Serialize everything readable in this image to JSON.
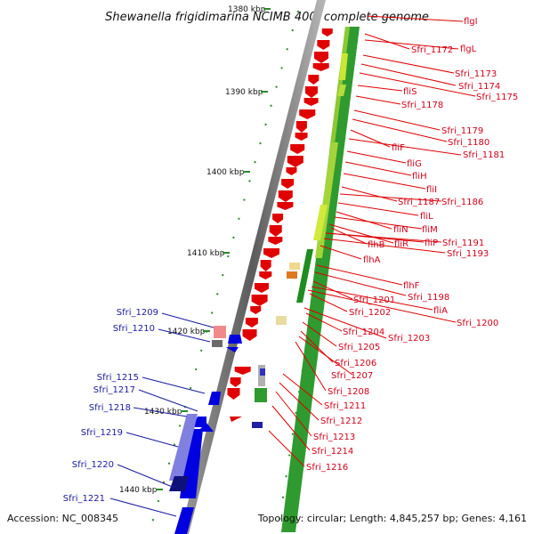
{
  "title": "Shewanella frigidimarina NCIMB 400, complete genome",
  "footer": {
    "accession": "Accession: NC_008345",
    "topology": "Topology: circular; Length: 4,845,257 bp; Genes: 4,161"
  },
  "scale_labels": [
    "1380 kbp",
    "1390 kbp",
    "1400 kbp",
    "1410 kbp",
    "1420 kbp",
    "1430 kbp",
    "1440 kbp"
  ],
  "right_genes": [
    "flgI",
    "Sfri_1172",
    "flgL",
    "Sfri_1173",
    "Sfri_1174",
    "Sfri_1175",
    "fliS",
    "Sfri_1178",
    "Sfri_1179",
    "Sfri_1180",
    "fliF",
    "Sfri_1181",
    "fliG",
    "fliH",
    "fliI",
    "Sfri_1187",
    "Sfri_1186",
    "fliL",
    "fliN",
    "fliM",
    "flhB",
    "fliR",
    "fliP",
    "Sfri_1191",
    "Sfri_1193",
    "flhA",
    "flhF",
    "Sfri_1198",
    "Sfri_1201",
    "fliA",
    "Sfri_1202",
    "Sfri_1200",
    "Sfri_1204",
    "Sfri_1203",
    "Sfri_1205",
    "Sfri_1206",
    "Sfri_1207",
    "Sfri_1208",
    "Sfri_1211",
    "Sfri_1212",
    "Sfri_1213",
    "Sfri_1214",
    "Sfri_1216"
  ],
  "left_genes": [
    "Sfri_1209",
    "Sfri_1210",
    "Sfri_1215",
    "Sfri_1217",
    "Sfri_1218",
    "Sfri_1219",
    "Sfri_1220",
    "Sfri_1221"
  ],
  "colors": {
    "forward_genes": "#e00000",
    "reverse_genes": "#0000e0",
    "backbone": "#808080",
    "gc_high": "#1e8c1e",
    "gc_low": "#c8e632"
  }
}
